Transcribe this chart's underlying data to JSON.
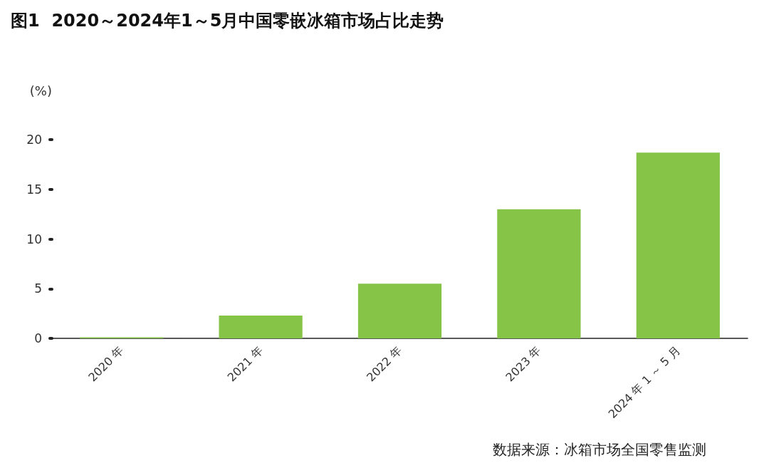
{
  "chart_data": {
    "type": "bar",
    "title": "图1  2020～2024年1～5月中国零嵌冰箱市场占比走势",
    "ylabel": "(%)",
    "categories": [
      "2020 年",
      "2021 年",
      "2022 年",
      "2023 年",
      "2024 年 1 ～ 5 月"
    ],
    "values": [
      0.1,
      2.3,
      5.5,
      13.0,
      18.7
    ],
    "color": "#85c446",
    "ylim": [
      0,
      20
    ],
    "yticks": [
      0,
      5,
      10,
      15,
      20
    ],
    "grid": false,
    "annotations": [
      "数据来源：冰箱市场全国零售监测"
    ]
  }
}
